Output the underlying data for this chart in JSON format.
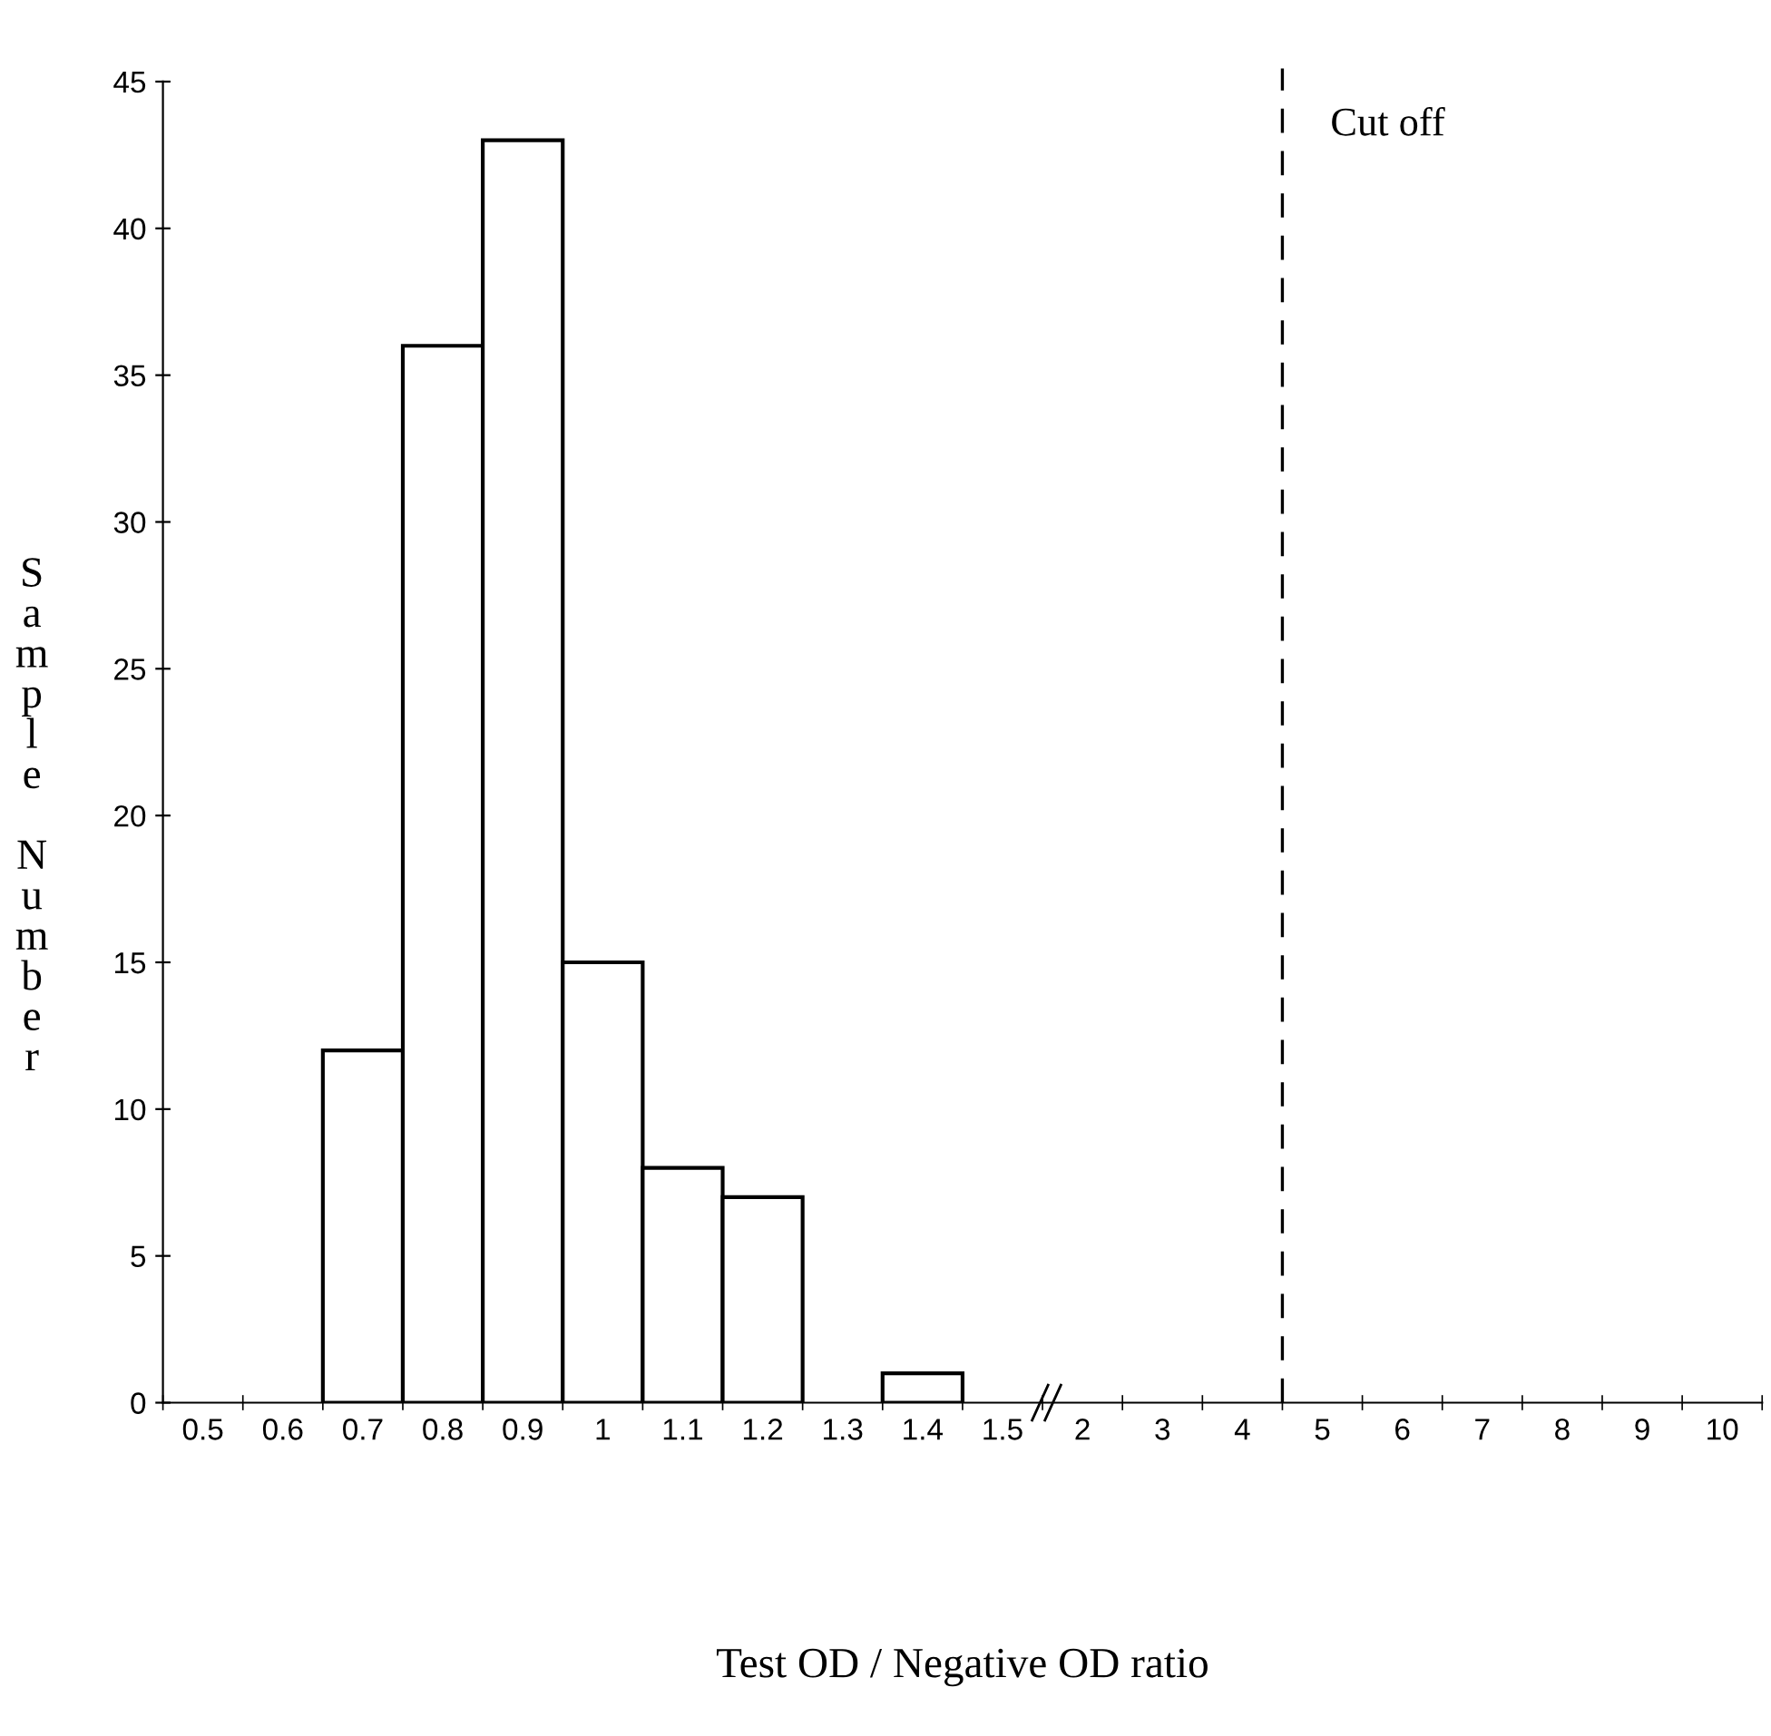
{
  "chart_data": {
    "type": "bar",
    "xlabel": "Test OD / Negative OD ratio",
    "ylabel": "Sample Number",
    "categories": [
      "0.5",
      "0.6",
      "0.7",
      "0.8",
      "0.9",
      "1",
      "1.1",
      "1.2",
      "1.3",
      "1.4",
      "1.5",
      "2",
      "3",
      "4",
      "5",
      "6",
      "7",
      "8",
      "9",
      "10"
    ],
    "values": [
      0,
      0,
      12,
      36,
      43,
      15,
      8,
      7,
      0,
      1,
      0,
      0,
      0,
      0,
      0,
      0,
      0,
      0,
      0,
      0
    ],
    "color": "#ffffff",
    "ylim": [
      0,
      45
    ],
    "yticks": [
      0,
      5,
      10,
      15,
      20,
      25,
      30,
      35,
      40,
      45
    ],
    "annotations": [
      "Cut off"
    ],
    "grid": false,
    "legend": false
  }
}
